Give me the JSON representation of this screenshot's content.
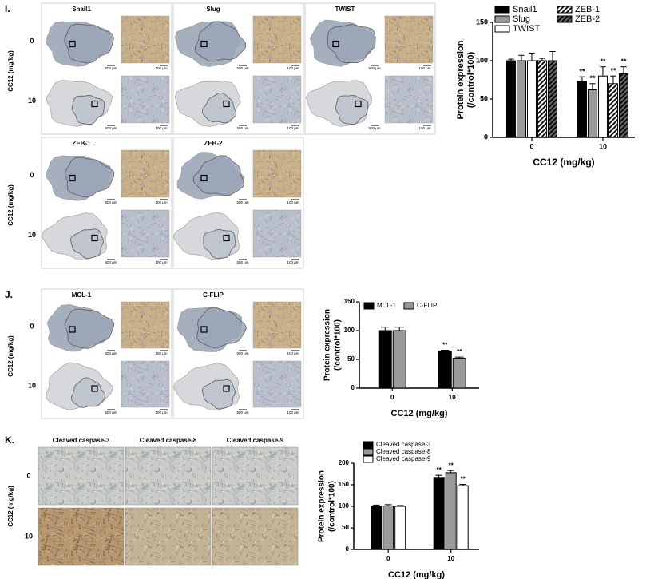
{
  "panels": [
    {
      "label": "I.",
      "axis_label": "CC12 (mg/kg)",
      "rows": [
        "0",
        "10"
      ],
      "columns": [
        "Snail1",
        "Slug",
        "TWIST"
      ],
      "scale_bars": [
        "500 μm",
        "100 μm"
      ]
    },
    {
      "axis_label": "CC12 (mg/kg)",
      "rows": [
        "0",
        "10"
      ],
      "columns": [
        "ZEB-1",
        "ZEB-2"
      ],
      "scale_bars": [
        "500 μm",
        "100 μm"
      ]
    },
    {
      "label": "J.",
      "axis_label": "CC12 (mg/kg)",
      "rows": [
        "0",
        "10"
      ],
      "columns": [
        "MCL-1",
        "C-FLIP"
      ],
      "scale_bars": [
        "500 μm",
        "100 μm"
      ]
    },
    {
      "label": "K.",
      "axis_label": "CC12 (mg/kg)",
      "rows": [
        "0",
        "10"
      ],
      "columns": [
        "Cleaved caspase-3",
        "Cleaved caspase-8",
        "Cleaved caspase-9"
      ]
    }
  ],
  "chart_data": [
    {
      "type": "bar",
      "ylabel": [
        "Protein expression",
        "(/control*100)"
      ],
      "xlabel": "CC12 (mg/kg)",
      "categories": [
        "0",
        "10"
      ],
      "ylim": [
        0,
        150
      ],
      "yticks": [
        0,
        50,
        100,
        150
      ],
      "legend": "top",
      "series": [
        {
          "name": "Snail1",
          "color": "#000000",
          "values": [
            100,
            73
          ],
          "errors": [
            2,
            6
          ],
          "labels": [
            null,
            "**"
          ]
        },
        {
          "name": "Slug",
          "color": "#9a9a9a",
          "values": [
            100,
            62
          ],
          "errors": [
            7,
            8
          ],
          "labels": [
            null,
            "**"
          ]
        },
        {
          "name": "TWIST",
          "color": "#ffffff",
          "values": [
            100,
            80
          ],
          "errors": [
            10,
            12
          ],
          "labels": [
            null,
            "**"
          ]
        },
        {
          "name": "ZEB-1",
          "color": "#ffffff",
          "hatch": "#000000",
          "values": [
            100,
            70
          ],
          "errors": [
            3,
            10
          ],
          "labels": [
            null,
            "**"
          ]
        },
        {
          "name": "ZEB-2",
          "color": "#666666",
          "hatch": "#000000",
          "values": [
            100,
            83
          ],
          "errors": [
            12,
            9
          ],
          "labels": [
            null,
            "**"
          ]
        }
      ]
    },
    {
      "type": "bar",
      "ylabel": [
        "Protein expression",
        "(/control*100)"
      ],
      "xlabel": "CC12 (mg/kg)",
      "categories": [
        "0",
        "10"
      ],
      "ylim": [
        0,
        150
      ],
      "yticks": [
        0,
        50,
        100,
        150
      ],
      "legend": "top",
      "series": [
        {
          "name": "MCL-1",
          "color": "#000000",
          "values": [
            100,
            64
          ],
          "errors": [
            6,
            2
          ],
          "labels": [
            null,
            "**"
          ]
        },
        {
          "name": "C-FLIP",
          "color": "#9a9a9a",
          "values": [
            100,
            52
          ],
          "errors": [
            6,
            2
          ],
          "labels": [
            null,
            "**"
          ]
        }
      ]
    },
    {
      "type": "bar",
      "ylabel": [
        "Protein expression",
        "(/control*100)"
      ],
      "xlabel": "CC12 (mg/kg)",
      "categories": [
        "0",
        "10"
      ],
      "ylim": [
        0,
        200
      ],
      "yticks": [
        0,
        50,
        100,
        150,
        200
      ],
      "legend": "top",
      "series": [
        {
          "name": "Cleaved caspase-3",
          "color": "#000000",
          "values": [
            100,
            167
          ],
          "errors": [
            3,
            5
          ],
          "labels": [
            null,
            "**"
          ]
        },
        {
          "name": "Cleaved caspase-8",
          "color": "#9a9a9a",
          "values": [
            101,
            178
          ],
          "errors": [
            3,
            5
          ],
          "labels": [
            null,
            "**"
          ]
        },
        {
          "name": "Cleaved caspase-9",
          "color": "#ffffff",
          "values": [
            100,
            148
          ],
          "errors": [
            2,
            3
          ],
          "labels": [
            null,
            "**"
          ]
        }
      ]
    }
  ]
}
